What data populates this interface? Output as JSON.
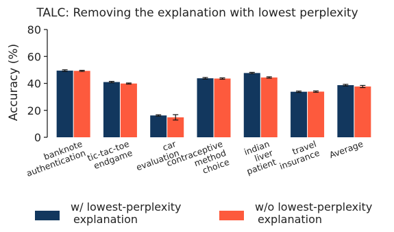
{
  "chart_data": {
    "type": "bar",
    "title": "TALC: Removing the explanation with lowest perplexity",
    "xlabel": "",
    "ylabel": "Accuracy (%)",
    "ylim": [
      0,
      80
    ],
    "yticks": [
      0,
      20,
      40,
      60,
      80
    ],
    "grid": false,
    "legend_position": "bottom",
    "categories": [
      "banknote\nauthentication",
      "tic-tac-toe\nendgame",
      "car\nevaluation",
      "contraceptive\nmethod\nchoice",
      "indian\nliver\npatient",
      "travel\ninsurance",
      "Average"
    ],
    "series": [
      {
        "name": "w/ lowest-perplexity\nexplanation",
        "color": "#12375e",
        "values": [
          49.5,
          41.0,
          16.2,
          43.8,
          47.7,
          33.8,
          38.7
        ],
        "errors": [
          0.6,
          0.5,
          0.5,
          0.6,
          0.5,
          0.5,
          0.6
        ]
      },
      {
        "name": "w/o lowest-perplexity\nexplanation",
        "color": "#fd5a3d",
        "values": [
          49.3,
          39.9,
          14.8,
          43.6,
          44.4,
          33.9,
          37.7
        ],
        "errors": [
          0.4,
          0.4,
          2.0,
          0.5,
          0.5,
          0.5,
          0.8
        ]
      }
    ]
  }
}
